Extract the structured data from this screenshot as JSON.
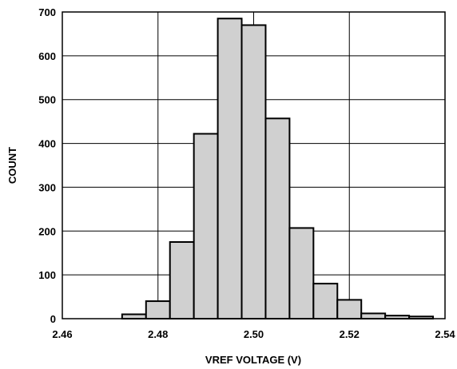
{
  "chart_data": {
    "type": "bar",
    "title": "",
    "xlabel": "VREF VOLTAGE (V)",
    "ylabel": "COUNT",
    "xlim": [
      2.46,
      2.54
    ],
    "ylim": [
      0,
      700
    ],
    "grid": true,
    "x_ticks": [
      "2.46",
      "2.48",
      "2.50",
      "2.52",
      "2.54"
    ],
    "y_ticks": [
      "0",
      "100",
      "200",
      "300",
      "400",
      "500",
      "600",
      "700"
    ],
    "bin_width": 0.005,
    "bins": [
      {
        "x_start": 2.4725,
        "x_end": 2.4775,
        "count": 10
      },
      {
        "x_start": 2.4775,
        "x_end": 2.4825,
        "count": 40
      },
      {
        "x_start": 2.4825,
        "x_end": 2.4875,
        "count": 175
      },
      {
        "x_start": 2.4875,
        "x_end": 2.4925,
        "count": 422
      },
      {
        "x_start": 2.4925,
        "x_end": 2.4975,
        "count": 685
      },
      {
        "x_start": 2.4975,
        "x_end": 2.5025,
        "count": 670
      },
      {
        "x_start": 2.5025,
        "x_end": 2.5075,
        "count": 457
      },
      {
        "x_start": 2.5075,
        "x_end": 2.5125,
        "count": 207
      },
      {
        "x_start": 2.5125,
        "x_end": 2.5175,
        "count": 80
      },
      {
        "x_start": 2.5175,
        "x_end": 2.5225,
        "count": 43
      },
      {
        "x_start": 2.5225,
        "x_end": 2.5275,
        "count": 12
      },
      {
        "x_start": 2.5275,
        "x_end": 2.5325,
        "count": 7
      },
      {
        "x_start": 2.5325,
        "x_end": 2.5375,
        "count": 5
      }
    ],
    "colors": {
      "bar_fill": "#d0d0d0",
      "bar_stroke": "#000000",
      "grid": "#000000",
      "axis": "#000000"
    }
  }
}
